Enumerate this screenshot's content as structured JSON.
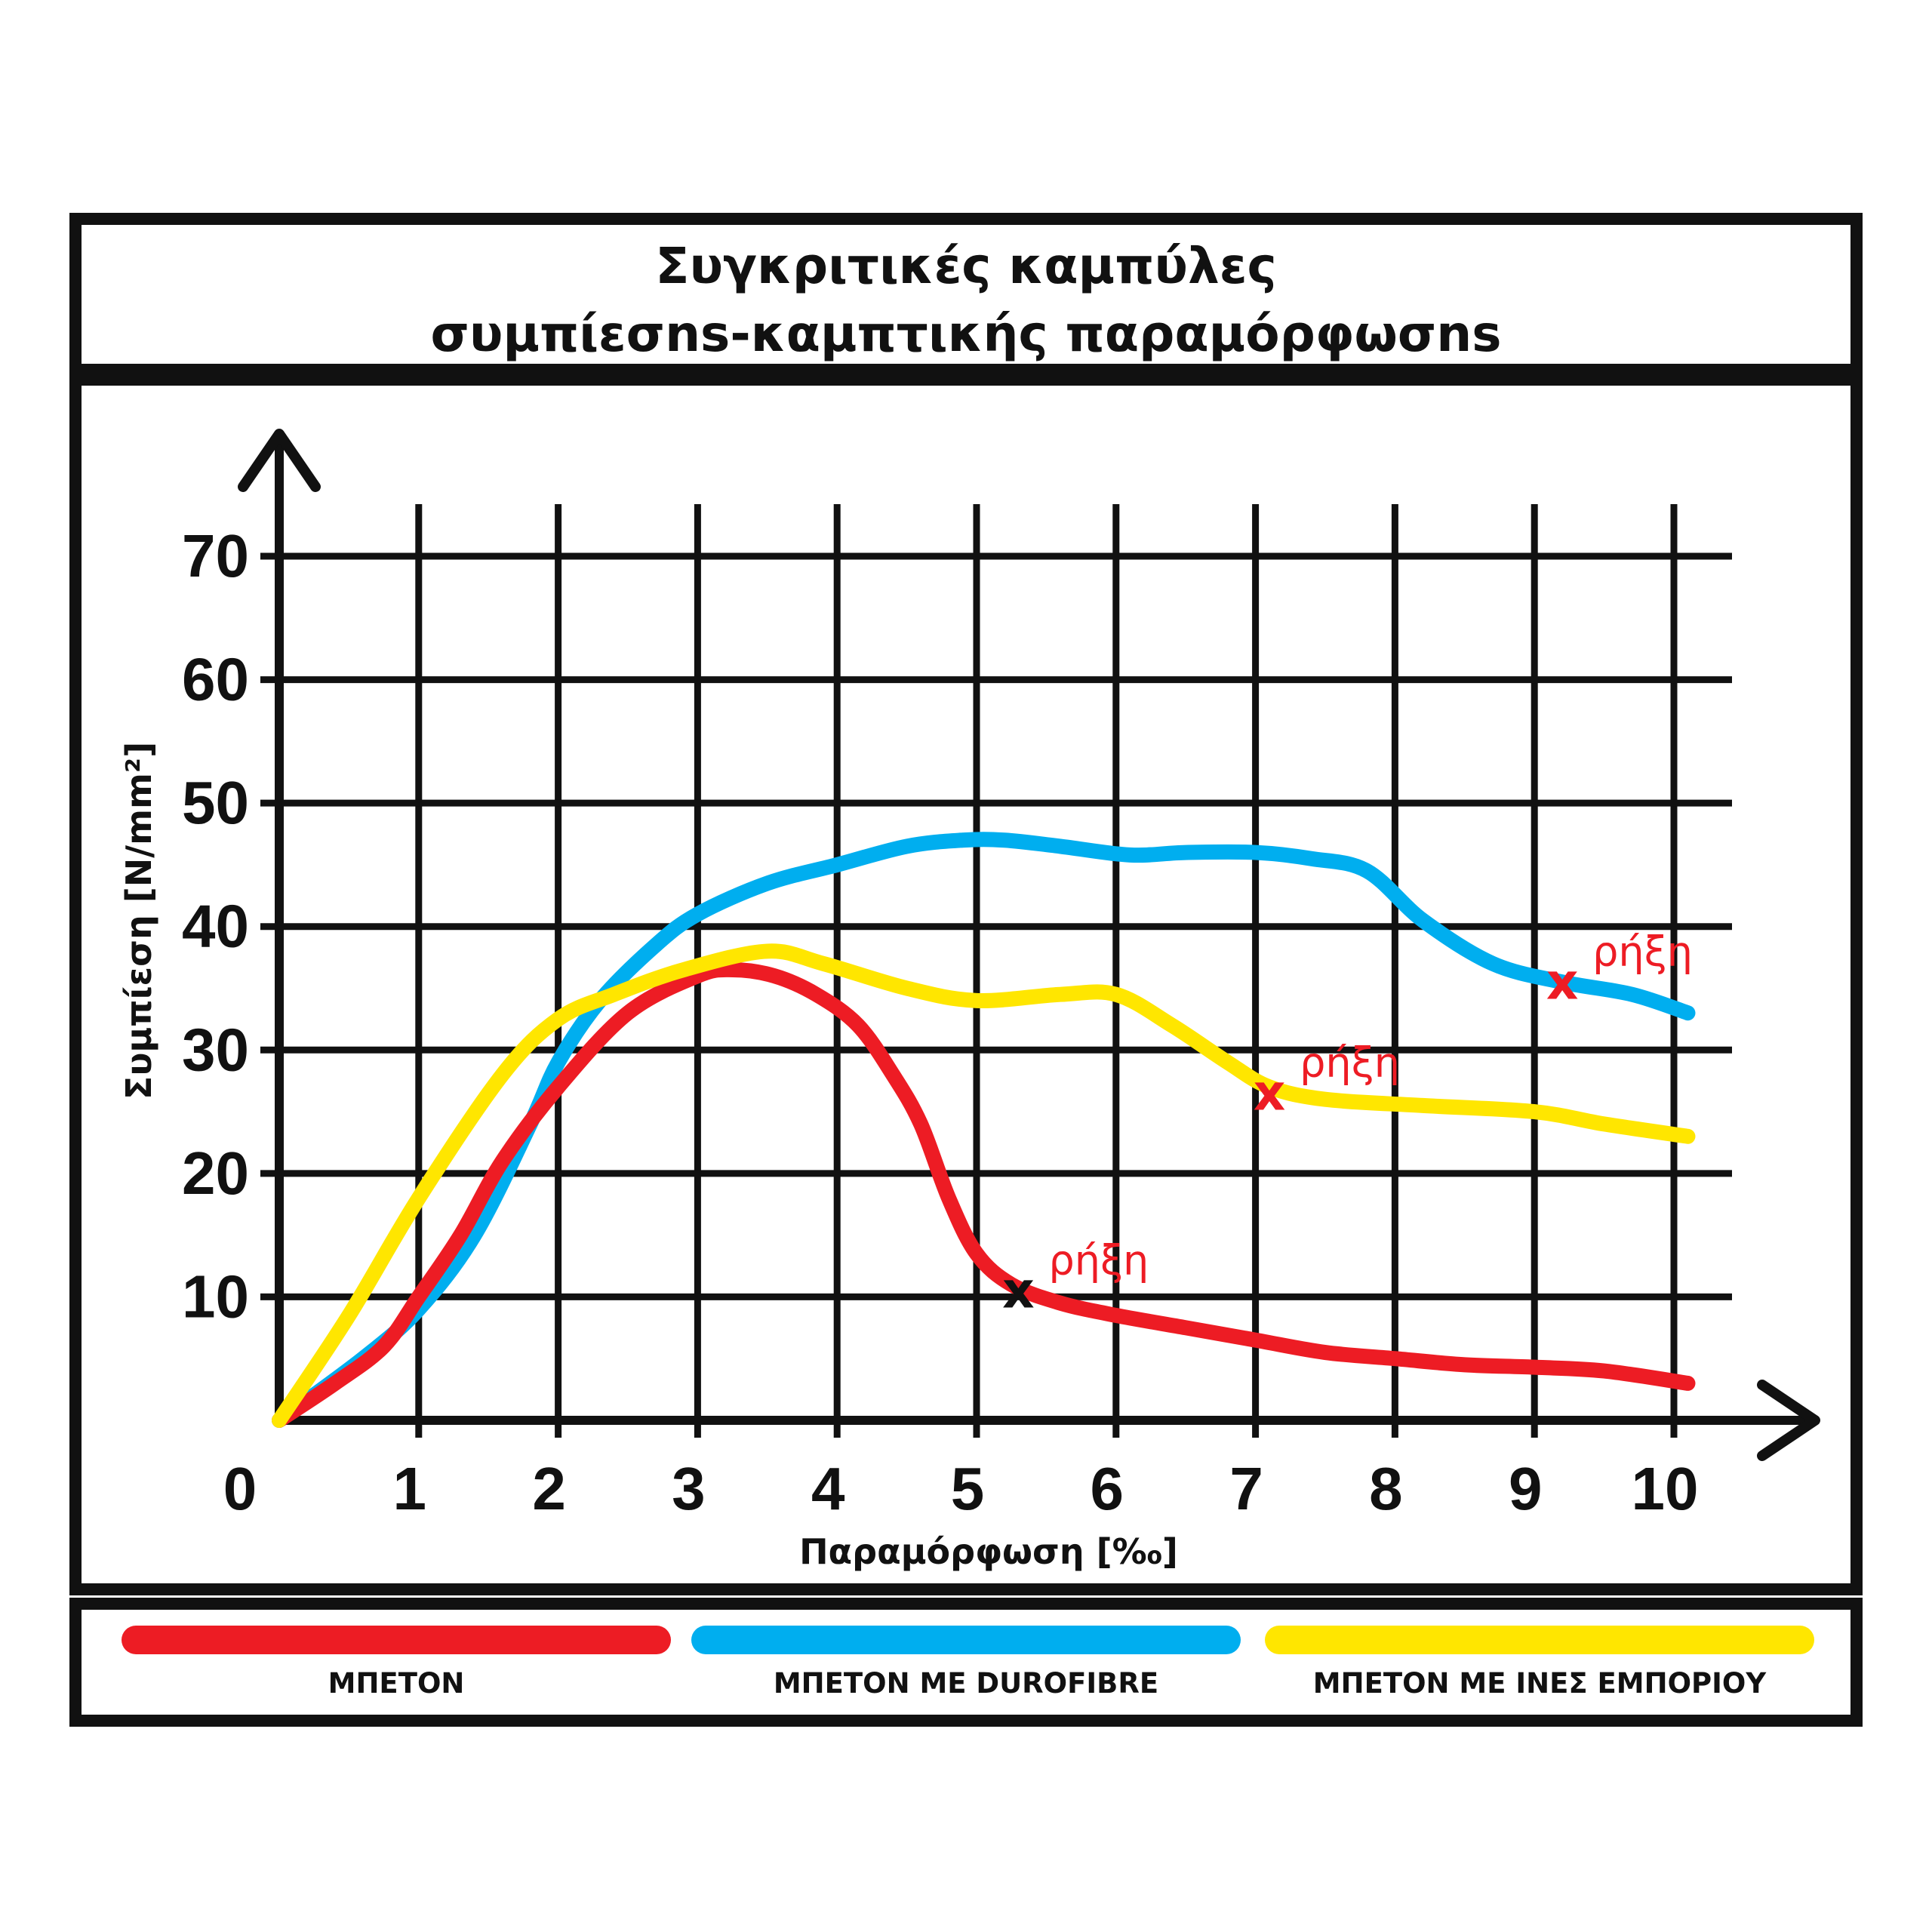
{
  "colors": {
    "frame": "#111111",
    "grid": "#111111",
    "background": "#ffffff",
    "concrete": "#ed1c24",
    "durofibre": "#00aeef",
    "commercial_fibres": "#ffe600",
    "annotation_text": "#ed1c24"
  },
  "chart_data": {
    "type": "line",
    "title": [
      "Συγκριτικές καμπύλες",
      "συμπίεσns-καμπτικής παραμόρφωσns"
    ],
    "xlabel": "Παραμόρφωση [‰]",
    "ylabel": "Συμπίεση [N/mm²]",
    "xlim": [
      0,
      10
    ],
    "ylim": [
      0,
      70
    ],
    "x_ticks": [
      0,
      1,
      2,
      3,
      4,
      5,
      6,
      7,
      8,
      9,
      10
    ],
    "y_ticks": [
      10,
      20,
      30,
      40,
      50,
      60,
      70
    ],
    "grid": true,
    "legend_position": "bottom",
    "series": [
      {
        "name": "ΜΠΕΤΟΝ",
        "color": "#ed1c24",
        "x": [
          0.0,
          0.4,
          0.75,
          1.0,
          1.3,
          1.6,
          2.0,
          2.5,
          3.0,
          3.25,
          3.55,
          3.85,
          4.15,
          4.4,
          4.6,
          4.8,
          5.0,
          5.25,
          5.6,
          6.0,
          6.5,
          7.0,
          7.5,
          8.0,
          8.5,
          9.0,
          9.5,
          10.1
        ],
        "y": [
          0,
          3,
          6,
          10,
          15,
          21,
          27,
          33,
          36,
          36.5,
          36,
          34.5,
          32,
          28,
          24,
          18,
          13.5,
          11,
          9.5,
          8.5,
          7.5,
          6.5,
          5.5,
          5,
          4.5,
          4.3,
          4,
          3
        ]
      },
      {
        "name": "ΜΠΕΤΟΝ ΜΕ DUROFIBRE",
        "color": "#00aeef",
        "x": [
          0.0,
          0.6,
          1.0,
          1.4,
          1.8,
          2.0,
          2.3,
          2.7,
          3.0,
          3.5,
          4.0,
          4.5,
          4.9,
          5.2,
          5.6,
          6.1,
          6.5,
          7.0,
          7.4,
          7.8,
          8.2,
          8.7,
          9.2,
          9.7,
          10.1
        ],
        "y": [
          0,
          5,
          9,
          15,
          24,
          29,
          34,
          38.5,
          41,
          43.5,
          45,
          46.5,
          47,
          47,
          46.5,
          45.8,
          46,
          46,
          45.5,
          44.5,
          40.5,
          37,
          35.5,
          34.5,
          33
        ]
      },
      {
        "name": "ΜΠΕΤΟΝ ΜΕ ΙΝΕΣ ΕΜΠΟΡΙΟΥ",
        "color": "#ffe600",
        "x": [
          0.0,
          0.5,
          1.0,
          1.6,
          2.0,
          2.4,
          2.9,
          3.5,
          3.9,
          4.5,
          5.0,
          5.6,
          6.0,
          6.4,
          6.8,
          7.1,
          7.5,
          8.2,
          9.0,
          9.5,
          10.1
        ],
        "y": [
          0,
          8.5,
          18,
          28,
          32.5,
          34.5,
          36.5,
          38,
          37,
          35,
          34,
          34.5,
          34.5,
          32,
          29,
          27,
          26,
          25.5,
          25,
          24,
          23
        ]
      }
    ],
    "annotations": [
      {
        "x": 5.3,
        "y": 10.5,
        "marker": "x",
        "text": "ρήξη",
        "marker_color": "#111111"
      },
      {
        "x": 7.1,
        "y": 26.5,
        "marker": "x",
        "text": "ρήξη",
        "marker_color": "#ed1c24"
      },
      {
        "x": 9.2,
        "y": 35.5,
        "marker": "x",
        "text": "ρήξη",
        "marker_color": "#ed1c24"
      }
    ]
  }
}
